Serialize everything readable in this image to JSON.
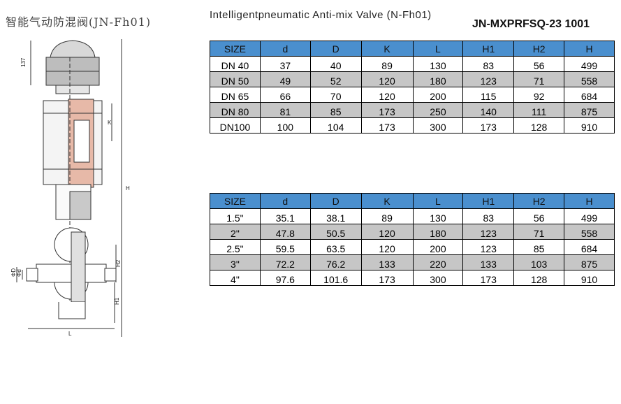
{
  "title_cn": "智能气动防混阀(JN-Fh01)",
  "title_en": "Intelligentpneumatic Anti-mix Valve (N-Fh01)",
  "model": "JN-MXPRFSQ-23 1001",
  "drawing_labels": {
    "dim_137": "137",
    "dim_k": "K",
    "dim_h": "H",
    "dim_h2": "H2",
    "dim_h1": "H1",
    "dim_D": "ΦD",
    "dim_d": "Φd",
    "dim_L": "L"
  },
  "table_metric": {
    "headers": [
      "SIZE",
      "d",
      "D",
      "K",
      "L",
      "H1",
      "H2",
      "H"
    ],
    "rows": [
      [
        "DN 40",
        "37",
        "40",
        "89",
        "130",
        "83",
        "56",
        "499"
      ],
      [
        "DN 50",
        "49",
        "52",
        "120",
        "180",
        "123",
        "71",
        "558"
      ],
      [
        "DN 65",
        "66",
        "70",
        "120",
        "200",
        "115",
        "92",
        "684"
      ],
      [
        "DN 80",
        "81",
        "85",
        "173",
        "250",
        "140",
        "111",
        "875"
      ],
      [
        "DN100",
        "100",
        "104",
        "173",
        "300",
        "173",
        "128",
        "910"
      ]
    ]
  },
  "table_inch": {
    "headers": [
      "SIZE",
      "d",
      "D",
      "K",
      "L",
      "H1",
      "H2",
      "H"
    ],
    "rows": [
      [
        "1.5\"",
        "35.1",
        "38.1",
        "89",
        "130",
        "83",
        "56",
        "499"
      ],
      [
        "2\"",
        "47.8",
        "50.5",
        "120",
        "180",
        "123",
        "71",
        "558"
      ],
      [
        "2.5\"",
        "59.5",
        "63.5",
        "120",
        "200",
        "123",
        "85",
        "684"
      ],
      [
        "3\"",
        "72.2",
        "76.2",
        "133",
        "220",
        "133",
        "103",
        "875"
      ],
      [
        "4\"",
        "97.6",
        "101.6",
        "173",
        "300",
        "173",
        "128",
        "910"
      ]
    ]
  }
}
